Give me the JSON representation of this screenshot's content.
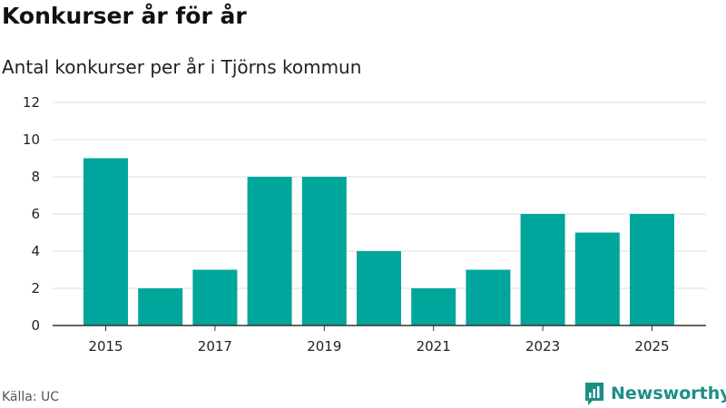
{
  "header": {
    "title": "Konkurser år för år",
    "subtitle": "Antal konkurser per år i Tjörns kommun"
  },
  "footer": {
    "source": "Källa: UC",
    "brand": "Newsworthy"
  },
  "colors": {
    "bar": "#00a59b",
    "grid": "#dddddd",
    "axis": "#333333",
    "brand": "#1b8f87"
  },
  "icons": {
    "brand": "newsworthy-logo-icon"
  },
  "chart_data": {
    "type": "bar",
    "categories": [
      "2015",
      "2016",
      "2017",
      "2018",
      "2019",
      "2020",
      "2021",
      "2022",
      "2023",
      "2024",
      "2025"
    ],
    "values": [
      9,
      2,
      3,
      8,
      8,
      4,
      2,
      3,
      6,
      5,
      6
    ],
    "x_tick_labels": [
      "2015",
      "2017",
      "2019",
      "2021",
      "2023",
      "2025"
    ],
    "y_ticks": [
      0,
      2,
      4,
      6,
      8,
      10,
      12
    ],
    "ylim": [
      0,
      12
    ],
    "title": "Konkurser år för år",
    "subtitle": "Antal konkurser per år i Tjörns kommun",
    "xlabel": "",
    "ylabel": "",
    "grid": true,
    "legend": "none"
  }
}
